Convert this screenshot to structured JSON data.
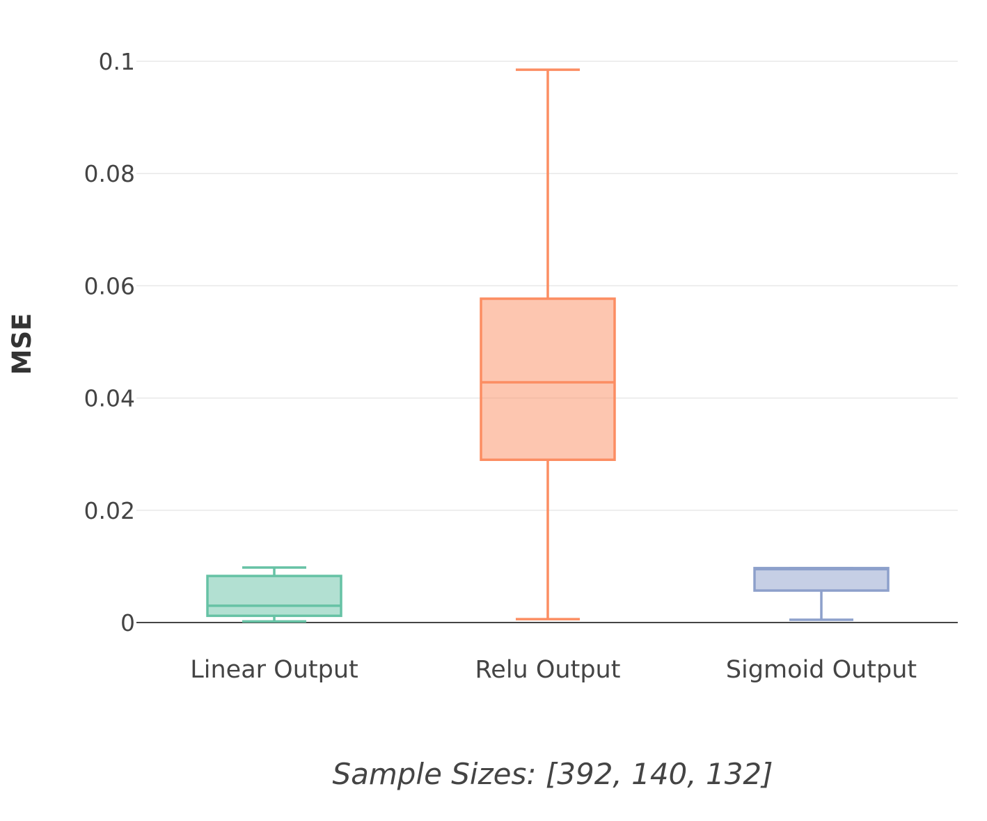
{
  "chart_data": {
    "type": "box",
    "ylabel": "MSE",
    "xlabel": "Sample Sizes: [392, 140, 132]",
    "ylim": [
      0,
      0.1
    ],
    "yticks": [
      0,
      0.02,
      0.04,
      0.06,
      0.08,
      0.1
    ],
    "ytick_labels": [
      "0",
      "0.02",
      "0.04",
      "0.06",
      "0.08",
      "0.1"
    ],
    "grid": true,
    "categories": [
      "Linear Output",
      "Relu Output",
      "Sigmoid Output"
    ],
    "boxes": [
      {
        "category": "Linear Output",
        "min": 0.0002,
        "q1": 0.0012,
        "median": 0.003,
        "q3": 0.0083,
        "max": 0.0098,
        "color": "#66c2a5"
      },
      {
        "category": "Relu Output",
        "min": 0.0006,
        "q1": 0.029,
        "median": 0.0428,
        "q3": 0.0577,
        "max": 0.0985,
        "color": "#fc8d62"
      },
      {
        "category": "Sigmoid Output",
        "min": 0.0005,
        "q1": 0.0057,
        "median": 0.0095,
        "q3": 0.0097,
        "max": 0.0097,
        "color": "#8da0cb"
      }
    ]
  }
}
